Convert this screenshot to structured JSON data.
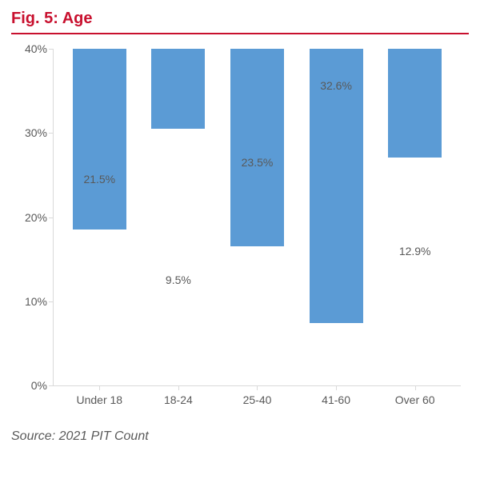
{
  "title": "Fig. 5: Age",
  "title_color": "#c8102e",
  "rule_color": "#c8102e",
  "source": "Source: 2021 PIT Count",
  "chart": {
    "type": "bar",
    "categories": [
      "Under 18",
      "18-24",
      "25-40",
      "41-60",
      "Over 60"
    ],
    "values": [
      21.5,
      9.5,
      23.5,
      32.6,
      12.9
    ],
    "value_labels": [
      "21.5%",
      "9.5%",
      "23.5%",
      "32.6%",
      "12.9%"
    ],
    "bar_color": "#5b9bd5",
    "ylim": [
      0,
      40
    ],
    "ytick_step": 10,
    "ytick_labels": [
      "0%",
      "10%",
      "20%",
      "30%",
      "40%"
    ],
    "axis_color": "#d9d9d9",
    "tick_color": "#d9d9d9",
    "text_color": "#595959",
    "label_fontsize": 14,
    "background_color": "#ffffff",
    "bar_width": 0.68
  }
}
